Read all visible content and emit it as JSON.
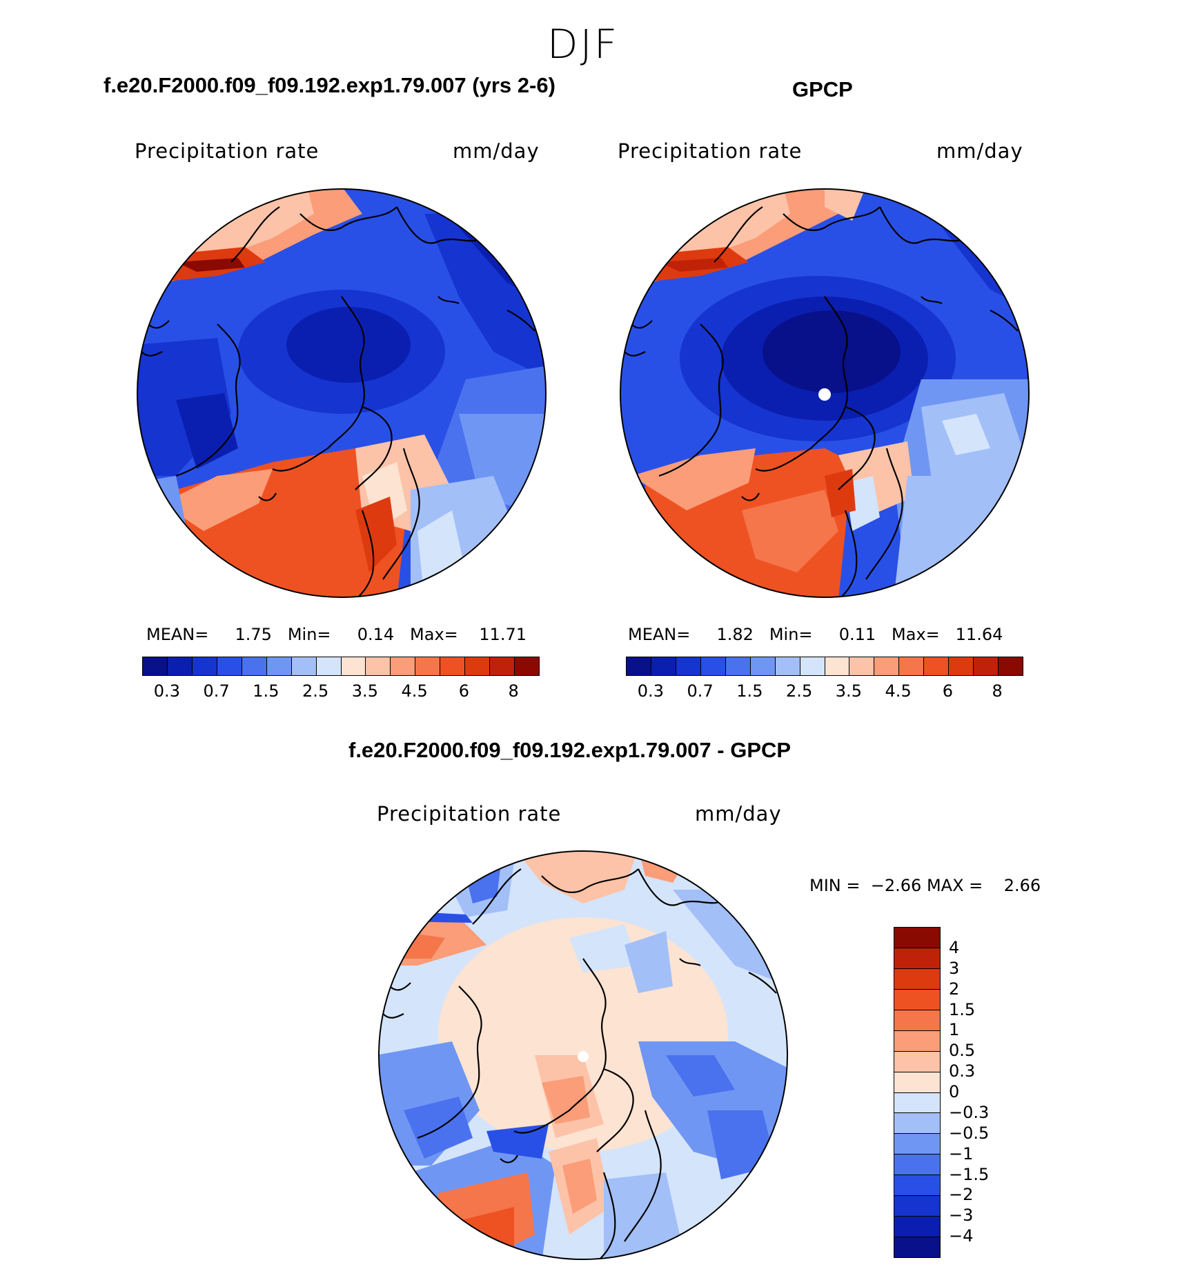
{
  "season": "DJF",
  "panels": [
    {
      "title": "f.e20.F2000.f09_f09.192.exp1.79.007 (yrs 2-6)",
      "variable": "Precipitation rate",
      "units": "mm/day",
      "stats": {
        "mean_label": "MEAN=",
        "mean": "1.75",
        "min_label": "Min=",
        "min": "0.14",
        "max_label": "Max=",
        "max": "11.71"
      }
    },
    {
      "title": "GPCP",
      "variable": "Precipitation rate",
      "units": "mm/day",
      "stats": {
        "mean_label": "MEAN=",
        "mean": "1.82",
        "min_label": "Min=",
        "min": "0.11",
        "max_label": "Max=",
        "max": "11.64"
      }
    },
    {
      "title": "f.e20.F2000.f09_f09.192.exp1.79.007 - GPCP",
      "variable": "Precipitation rate",
      "units": "mm/day",
      "stats": {
        "min_label": "MIN =",
        "min": "−2.66",
        "max_label": "MAX =",
        "max": "2.66"
      }
    }
  ],
  "colorbar_abs": {
    "colors": [
      "#08108a",
      "#0a1fb0",
      "#1634d0",
      "#2950e6",
      "#4a72ee",
      "#7096f4",
      "#a3bff8",
      "#d4e4fb",
      "#fde3d2",
      "#fcc3a8",
      "#fa9d78",
      "#f5764a",
      "#ee5223",
      "#de3a10",
      "#bf2208",
      "#8a0a02"
    ],
    "labels": [
      "0.3",
      "0.7",
      "1.5",
      "2.5",
      "3.5",
      "4.5",
      "6",
      "8"
    ]
  },
  "colorbar_diff": {
    "colors": [
      "#8a0a02",
      "#bf2208",
      "#de3a10",
      "#ee5223",
      "#f5764a",
      "#fa9d78",
      "#fcc3a8",
      "#fde3d2",
      "#d4e4fb",
      "#a3bff8",
      "#7096f4",
      "#4a72ee",
      "#2950e6",
      "#1634d0",
      "#0a1fb0",
      "#08108a"
    ],
    "labels": [
      "4",
      "3",
      "2",
      "1.5",
      "1",
      "0.5",
      "0.3",
      "0",
      "−0.3",
      "−0.5",
      "−1",
      "−1.5",
      "−2",
      "−3",
      "−4"
    ]
  }
}
